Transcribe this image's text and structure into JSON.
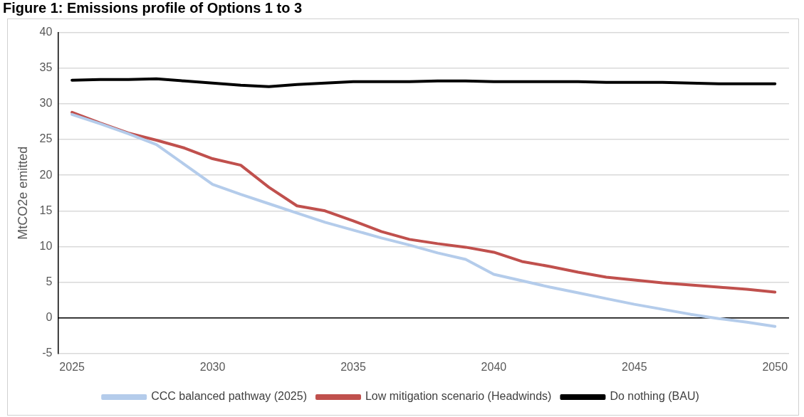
{
  "chart_data": {
    "type": "line",
    "title": "Figure 1: Emissions profile of Options 1 to 3",
    "ylabel": "MtCO2e emitted",
    "categories": [
      "2025",
      null,
      null,
      null,
      null,
      "2030",
      null,
      null,
      null,
      null,
      "2035",
      null,
      null,
      null,
      null,
      "2040",
      null,
      null,
      null,
      null,
      "2045",
      null,
      null,
      null,
      null,
      "2050"
    ],
    "series": [
      {
        "name": "CCC balanced pathway (2025)",
        "color": "#b4cceb",
        "values": [
          28.5,
          27.2,
          25.8,
          24.3,
          21.5,
          18.7,
          17.3,
          16.0,
          14.7,
          13.4,
          12.3,
          11.2,
          10.2,
          9.1,
          8.2,
          6.1,
          5.2,
          4.3,
          3.5,
          2.7,
          1.9,
          1.2,
          0.5,
          -0.1,
          -0.6,
          -1.2
        ]
      },
      {
        "name": "Low mitigation scenario (Headwinds)",
        "color": "#c0504d",
        "values": [
          28.8,
          27.3,
          25.9,
          24.9,
          23.8,
          22.3,
          21.4,
          18.3,
          15.7,
          15.0,
          13.6,
          12.1,
          11.0,
          10.4,
          9.9,
          9.2,
          7.9,
          7.2,
          6.4,
          5.7,
          5.3,
          4.9,
          4.6,
          4.3,
          4.0,
          3.6
        ]
      },
      {
        "name": "Do nothing (BAU)",
        "color": "#000000",
        "values": [
          33.3,
          33.4,
          33.4,
          33.5,
          33.2,
          32.9,
          32.6,
          32.4,
          32.7,
          32.9,
          33.1,
          33.1,
          33.1,
          33.2,
          33.2,
          33.1,
          33.1,
          33.1,
          33.1,
          33.0,
          33.0,
          33.0,
          32.9,
          32.8,
          32.8,
          32.8
        ]
      }
    ],
    "ylim": [
      -5,
      40
    ],
    "yticks": [
      -5,
      0,
      5,
      10,
      15,
      20,
      25,
      30,
      35,
      40
    ],
    "grid": "y",
    "legend": "bottom",
    "marker": "none",
    "line_style": "solid"
  }
}
